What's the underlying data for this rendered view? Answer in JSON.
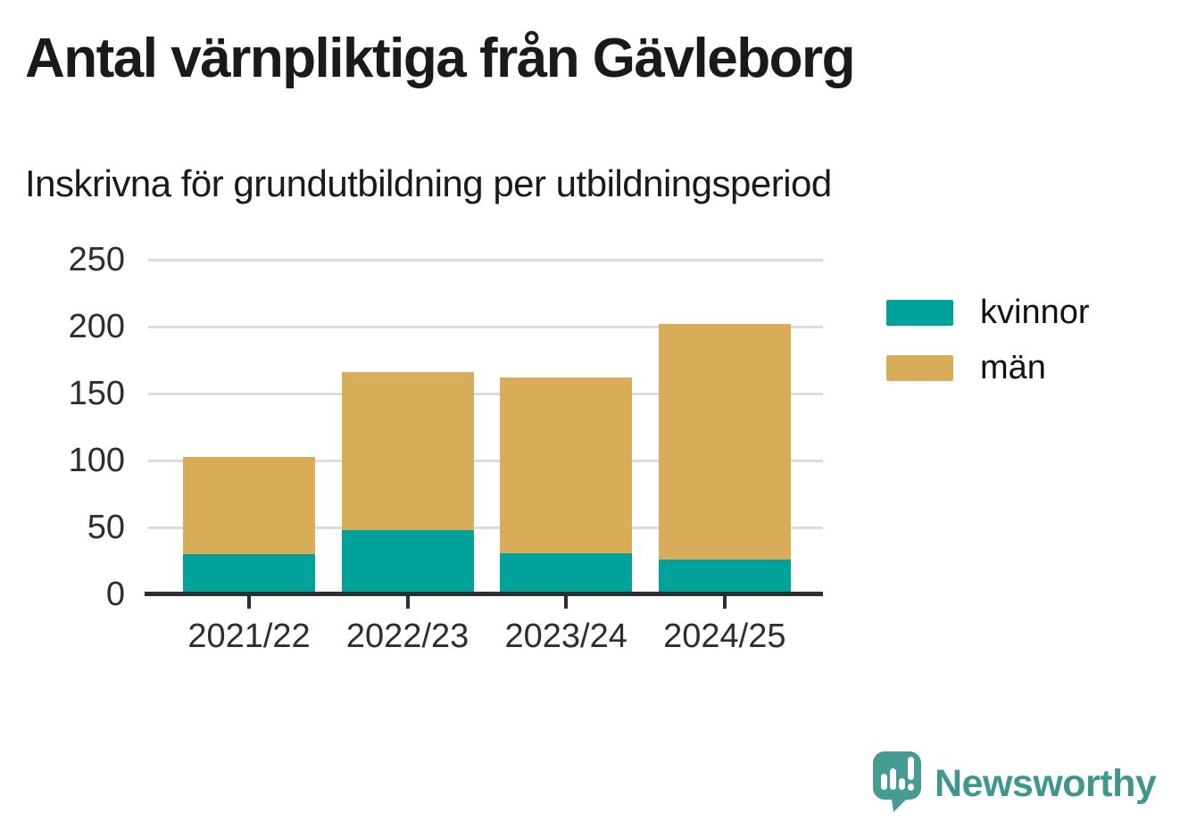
{
  "title": "Antal värnpliktiga från Gävleborg",
  "subtitle": "Inskrivna för grundutbildning per utbildningsperiod",
  "branding": {
    "logo_text": "Newsworthy",
    "logo_icon": "speech-bubble-bar-chart-exclamation"
  },
  "colors": {
    "kvinnor": "#00a29a",
    "man": "#d9ac5a",
    "logo_teal": "#3e968d",
    "grid": "#dcdcdc",
    "axis": "#2e2e2e",
    "heading_text": "#1a1a1a",
    "tick_text": "#2e2e2e"
  },
  "chart_data": {
    "type": "bar",
    "stacked": true,
    "title": "Antal värnpliktiga från Gävleborg",
    "subtitle": "Inskrivna för grundutbildning per utbildningsperiod",
    "categories": [
      "2021/22",
      "2022/23",
      "2023/24",
      "2024/25"
    ],
    "series": [
      {
        "name": "kvinnor",
        "color": "#00a29a",
        "values": [
          30,
          48,
          31,
          26
        ]
      },
      {
        "name": "män",
        "color": "#d9ac5a",
        "values": [
          73,
          118,
          131,
          176
        ]
      }
    ],
    "totals": [
      103,
      166,
      162,
      202
    ],
    "xlabel": "",
    "ylabel": "",
    "ylim": [
      0,
      250
    ],
    "yticks": [
      0,
      50,
      100,
      150,
      200,
      250
    ],
    "grid": true,
    "legend_position": "right"
  }
}
